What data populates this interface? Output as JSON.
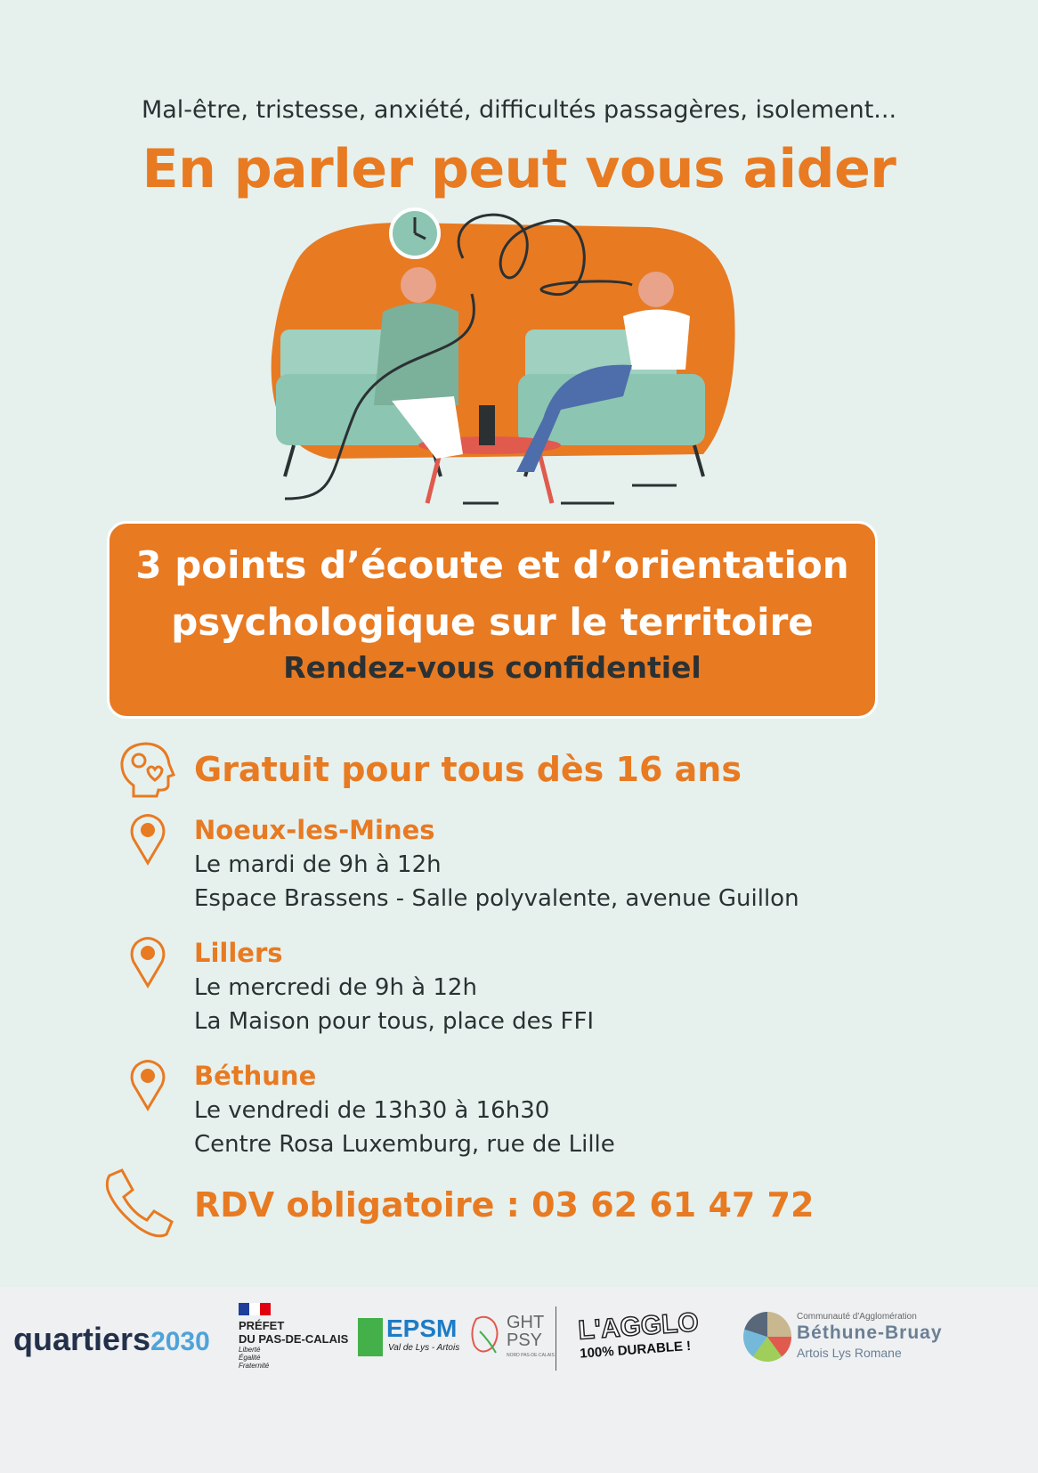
{
  "intro": "Mal-être, tristesse, anxiété, difficultés passagères, isolement...",
  "title": "En parler peut vous aider",
  "box": {
    "line1": "3 points d’écoute et d’orientation",
    "line2": "psychologique sur le territoire",
    "line3": "Rendez-vous confidentiel"
  },
  "free": "Gratuit pour tous dès 16 ans",
  "locations": [
    {
      "city": "Noeux-les-Mines",
      "when": "Le mardi de 9h à 12h",
      "where": "Espace Brassens - Salle polyvalente, avenue Guillon"
    },
    {
      "city": "Lillers",
      "when": "Le mercredi de 9h à 12h",
      "where": "La Maison pour tous, place des FFI"
    },
    {
      "city": "Béthune",
      "when": "Le vendredi de 13h30 à 16h30",
      "where": "Centre Rosa Luxemburg, rue de Lille"
    }
  ],
  "rdv": "RDV obligatoire : 03 62 61 47 72",
  "logos": {
    "quartiers": "quartiers",
    "quartiers_year": "2030",
    "prefet1": "PRÉFET",
    "prefet2": "DU PAS-DE-CALAIS",
    "prefet_motto": "Liberté Égalité Fraternité",
    "epsm": "EPSM",
    "epsm_sub": "Val de Lys - Artois",
    "ght1": "GHT",
    "ght2": "PSY",
    "ght_sub": "NORD PAS-DE-CALAIS",
    "agglo": "L'AGGLO",
    "agglo_sub": "100% DURABLE !",
    "cabbalr_top": "Communauté d'Agglomération",
    "cabbalr_main": "Béthune-Bruay",
    "cabbalr_sub": "Artois Lys Romane"
  },
  "colors": {
    "accent": "#e87a22",
    "text": "#2b3133",
    "background": "#e6f1ee",
    "sofa": "#8cc5b2"
  }
}
